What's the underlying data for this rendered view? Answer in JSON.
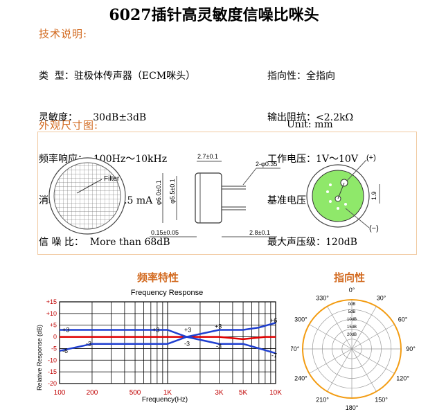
{
  "title": "6027插针高灵敏度信噪比咪头",
  "sections": {
    "tech": "技术说明:",
    "appearance": "外观尺寸图:",
    "freq": "频率特性",
    "dir": "指向性"
  },
  "specs_left": [
    "类  型：驻极体传声器（ECM咪头）",
    "灵敏度：     30dB±3dB",
    "频率响应：  100Hz～10kHz",
    "消耗电流：  Max:0.5 mA",
    "信 噪 比：  More than 68dB"
  ],
  "specs_right": [
    "指向性：全指向",
    "输出阻抗：<2.2kΩ",
    "工作电压：1V～10V",
    "基准电压：2.0V",
    "最大声压级：120dB"
  ],
  "unit": "Unit: mm",
  "dims": {
    "filter": "Filter",
    "d1": "2.7±0.1",
    "d2": "2-φ0.35",
    "d3": "φ6.0±0.1",
    "d4": "φ5.5±0.1",
    "d5": "0.15±0.05",
    "d6": "2.8±0.1",
    "plus": "(+)",
    "minus": "(−)",
    "d7": "1.9"
  },
  "chart_data": [
    {
      "type": "line",
      "title": "Frequency Response",
      "xlabel": "Frequency(Hz)",
      "ylabel": "Relative Response (dB)",
      "x_ticks": [
        "100",
        "200",
        "500",
        "1K",
        "3K",
        "5K",
        "10K"
      ],
      "x_tick_values": [
        100,
        200,
        500,
        1000,
        3000,
        5000,
        10000
      ],
      "y_ticks": [
        "+15",
        "+10",
        "+5",
        "0",
        "-5",
        "-10",
        "-15",
        "-20"
      ],
      "y_tick_values": [
        15,
        10,
        5,
        0,
        -5,
        -10,
        -15,
        -20
      ],
      "ylim": [
        -20,
        15
      ],
      "xlim": [
        100,
        10000
      ],
      "x_scale": "log",
      "series": [
        {
          "color": "#e00000",
          "x": [
            100,
            1000,
            3000,
            5000,
            8000,
            10000
          ],
          "y": [
            0,
            0,
            0,
            -1,
            0,
            0
          ]
        },
        {
          "color": "#1f3fd0",
          "x": [
            100,
            1000,
            1500,
            3000,
            5000,
            7000,
            10000
          ],
          "y": [
            3,
            3,
            0,
            3,
            3,
            4,
            6
          ]
        },
        {
          "color": "#1f3fd0",
          "x": [
            100,
            200,
            1000,
            1500,
            3000,
            5000,
            10000
          ],
          "y": [
            -6,
            -3,
            -3,
            0,
            -3,
            -3,
            -7
          ]
        }
      ],
      "annotations": [
        "+3",
        "-3",
        "-6",
        "+3",
        "+3",
        "-3",
        "+3",
        "-3",
        "+6",
        "-7"
      ]
    },
    {
      "type": "polar",
      "angle_labels": [
        "0°",
        "30°",
        "60°",
        "90°",
        "120°",
        "150°",
        "180°",
        "210°",
        "240°",
        "270°",
        "300°",
        "330°"
      ],
      "ring_labels": [
        "0dB",
        "5dB",
        "10dB",
        "15dB",
        "20dB"
      ]
    }
  ],
  "colors": {
    "accent": "#d2691e",
    "red": "#e00000",
    "blue": "#1f3fd0",
    "pcb": "#8fe86a"
  }
}
